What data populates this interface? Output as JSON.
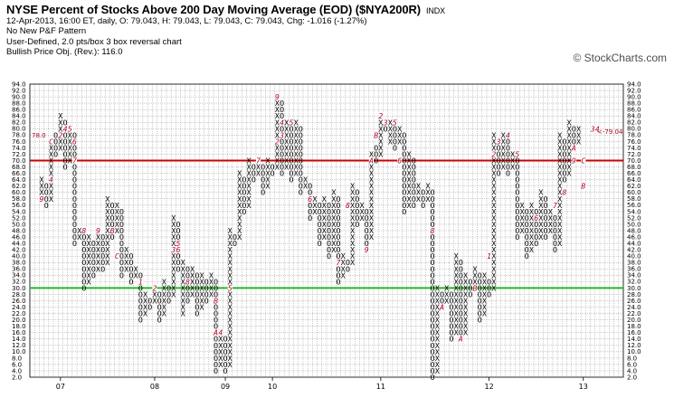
{
  "header": {
    "title": "NYSE Percent of Stocks Above 200 Day Moving Average (EOD) ($NYA200R)",
    "exchange": "INDX",
    "quote_line": "12-Apr-2013, 16:00 ET, daily, O: 79.043, H: 79.043, L: 79.043, C: 79.043, Chg: -1.016 (-1.27%)",
    "pattern_line": "No New P&F Pattern",
    "scale_line": "User-Defined, 2.0 pts/box 3 box reversal chart",
    "objective_line": "Bullish Price Obj. (Rev.): 116.0"
  },
  "watermark": "© StockCharts.com",
  "colors": {
    "x_o": "#000000",
    "month_marks": "#b0002a",
    "red_line": "#cc0000",
    "green_line": "#22bb22",
    "grid": "#999999"
  },
  "chart_data": {
    "type": "point-and-figure",
    "box_size": 2.0,
    "reversal": 3,
    "ylim": [
      2,
      94
    ],
    "yticks": [
      2,
      4,
      6,
      8,
      10,
      12,
      14,
      16,
      18,
      20,
      22,
      24,
      26,
      28,
      30,
      32,
      34,
      36,
      38,
      40,
      42,
      44,
      46,
      48,
      50,
      52,
      54,
      56,
      58,
      60,
      62,
      64,
      66,
      68,
      70,
      72,
      74,
      76,
      78,
      80,
      82,
      84,
      86,
      88,
      90,
      92,
      94
    ],
    "year_labels": [
      {
        "label": "07",
        "column": 4
      },
      {
        "label": "08",
        "column": 24
      },
      {
        "label": "09",
        "column": 39
      },
      {
        "label": "10",
        "column": 49
      },
      {
        "label": "11",
        "column": 72
      },
      {
        "label": "12",
        "column": 95
      },
      {
        "label": "13",
        "column": 115
      }
    ],
    "reference_lines": [
      {
        "name": "red",
        "value": 70,
        "color": "#cc0000"
      },
      {
        "name": "green",
        "value": 30,
        "color": "#22bb22"
      }
    ],
    "last_value_marker": {
      "text": "<-79.04",
      "value": 79.04
    },
    "left_label": {
      "text": "78.0",
      "value": 78
    },
    "columns": [
      {
        "t": "X",
        "lo": 58,
        "hi": 64
      },
      {
        "t": "O",
        "lo": 56,
        "hi": 62
      },
      {
        "t": "X",
        "lo": 58,
        "hi": 76
      },
      {
        "t": "O",
        "lo": 72,
        "hi": 78
      },
      {
        "t": "X",
        "lo": 74,
        "hi": 84
      },
      {
        "t": "O",
        "lo": 68,
        "hi": 82
      },
      {
        "t": "X",
        "lo": 70,
        "hi": 80
      },
      {
        "t": "O",
        "lo": 44,
        "hi": 78
      },
      {
        "t": "X",
        "lo": 46,
        "hi": 48
      },
      {
        "t": "O",
        "lo": 30,
        "hi": 46
      },
      {
        "t": "X",
        "lo": 32,
        "hi": 46
      },
      {
        "t": "O",
        "lo": 34,
        "hi": 44
      },
      {
        "t": "X",
        "lo": 36,
        "hi": 48
      },
      {
        "t": "O",
        "lo": 36,
        "hi": 46
      },
      {
        "t": "X",
        "lo": 38,
        "hi": 58
      },
      {
        "t": "O",
        "lo": 46,
        "hi": 56
      },
      {
        "t": "X",
        "lo": 48,
        "hi": 56
      },
      {
        "t": "O",
        "lo": 34,
        "hi": 54
      },
      {
        "t": "X",
        "lo": 36,
        "hi": 42
      },
      {
        "t": "O",
        "lo": 32,
        "hi": 40
      },
      {
        "t": "X",
        "lo": 34,
        "hi": 36
      },
      {
        "t": "O",
        "lo": 20,
        "hi": 34
      },
      {
        "t": "X",
        "lo": 22,
        "hi": 28
      },
      {
        "t": "O",
        "lo": 24,
        "hi": 26
      },
      {
        "t": "X",
        "lo": 26,
        "hi": 30
      },
      {
        "t": "O",
        "lo": 20,
        "hi": 28
      },
      {
        "t": "X",
        "lo": 22,
        "hi": 32
      },
      {
        "t": "O",
        "lo": 26,
        "hi": 30
      },
      {
        "t": "X",
        "lo": 28,
        "hi": 52
      },
      {
        "t": "O",
        "lo": 36,
        "hi": 50
      },
      {
        "t": "X",
        "lo": 22,
        "hi": 38
      },
      {
        "t": "O",
        "lo": 26,
        "hi": 36
      },
      {
        "t": "X",
        "lo": 28,
        "hi": 36
      },
      {
        "t": "O",
        "lo": 22,
        "hi": 34
      },
      {
        "t": "X",
        "lo": 24,
        "hi": 34
      },
      {
        "t": "O",
        "lo": 26,
        "hi": 32
      },
      {
        "t": "X",
        "lo": 28,
        "hi": 34
      },
      {
        "t": "O",
        "lo": 4,
        "hi": 32
      },
      {
        "t": "X",
        "lo": 6,
        "hi": 16
      },
      {
        "t": "O",
        "lo": 4,
        "hi": 14
      },
      {
        "t": "X",
        "lo": 6,
        "hi": 48
      },
      {
        "t": "O",
        "lo": 44,
        "hi": 46
      },
      {
        "t": "X",
        "lo": 46,
        "hi": 66
      },
      {
        "t": "O",
        "lo": 54,
        "hi": 64
      },
      {
        "t": "X",
        "lo": 56,
        "hi": 70
      },
      {
        "t": "O",
        "lo": 64,
        "hi": 68
      },
      {
        "t": "X",
        "lo": 66,
        "hi": 70
      },
      {
        "t": "O",
        "lo": 60,
        "hi": 68
      },
      {
        "t": "X",
        "lo": 62,
        "hi": 70
      },
      {
        "t": "O",
        "lo": 66,
        "hi": 68
      },
      {
        "t": "X",
        "lo": 68,
        "hi": 90
      },
      {
        "t": "O",
        "lo": 66,
        "hi": 88
      },
      {
        "t": "X",
        "lo": 68,
        "hi": 82
      },
      {
        "t": "O",
        "lo": 64,
        "hi": 80
      },
      {
        "t": "X",
        "lo": 66,
        "hi": 82
      },
      {
        "t": "O",
        "lo": 60,
        "hi": 80
      },
      {
        "t": "X",
        "lo": 62,
        "hi": 64
      },
      {
        "t": "O",
        "lo": 52,
        "hi": 62
      },
      {
        "t": "X",
        "lo": 54,
        "hi": 58
      },
      {
        "t": "O",
        "lo": 44,
        "hi": 56
      },
      {
        "t": "X",
        "lo": 46,
        "hi": 58
      },
      {
        "t": "O",
        "lo": 40,
        "hi": 56
      },
      {
        "t": "X",
        "lo": 42,
        "hi": 60
      },
      {
        "t": "O",
        "lo": 32,
        "hi": 58
      },
      {
        "t": "X",
        "lo": 34,
        "hi": 40
      },
      {
        "t": "O",
        "lo": 36,
        "hi": 38
      },
      {
        "t": "X",
        "lo": 38,
        "hi": 62
      },
      {
        "t": "O",
        "lo": 50,
        "hi": 60
      },
      {
        "t": "X",
        "lo": 52,
        "hi": 56
      },
      {
        "t": "O",
        "lo": 44,
        "hi": 54
      },
      {
        "t": "X",
        "lo": 46,
        "hi": 72
      },
      {
        "t": "O",
        "lo": 70,
        "hi": 74
      },
      {
        "t": "X",
        "lo": 72,
        "hi": 84
      },
      {
        "t": "O",
        "lo": 80,
        "hi": 82
      },
      {
        "t": "X",
        "lo": 76,
        "hi": 82
      },
      {
        "t": "O",
        "lo": 74,
        "hi": 80
      },
      {
        "t": "X",
        "lo": 76,
        "hi": 80
      },
      {
        "t": "O",
        "lo": 54,
        "hi": 78
      },
      {
        "t": "X",
        "lo": 56,
        "hi": 72
      },
      {
        "t": "O",
        "lo": 56,
        "hi": 70
      },
      {
        "t": "X",
        "lo": 58,
        "hi": 62
      },
      {
        "t": "O",
        "lo": 56,
        "hi": 60
      },
      {
        "t": "X",
        "lo": 58,
        "hi": 62
      },
      {
        "t": "O",
        "lo": 2,
        "hi": 60
      },
      {
        "t": "X",
        "lo": 4,
        "hi": 30
      },
      {
        "t": "O",
        "lo": 24,
        "hi": 28
      },
      {
        "t": "X",
        "lo": 26,
        "hi": 30
      },
      {
        "t": "O",
        "lo": 14,
        "hi": 28
      },
      {
        "t": "X",
        "lo": 16,
        "hi": 40
      },
      {
        "t": "O",
        "lo": 14,
        "hi": 38
      },
      {
        "t": "X",
        "lo": 16,
        "hi": 34
      },
      {
        "t": "O",
        "lo": 28,
        "hi": 32
      },
      {
        "t": "X",
        "lo": 30,
        "hi": 36
      },
      {
        "t": "O",
        "lo": 20,
        "hi": 34
      },
      {
        "t": "X",
        "lo": 22,
        "hi": 34
      },
      {
        "t": "O",
        "lo": 28,
        "hi": 32
      },
      {
        "t": "X",
        "lo": 30,
        "hi": 78
      },
      {
        "t": "O",
        "lo": 66,
        "hi": 76
      },
      {
        "t": "X",
        "lo": 68,
        "hi": 78
      },
      {
        "t": "O",
        "lo": 66,
        "hi": 76
      },
      {
        "t": "X",
        "lo": 68,
        "hi": 72
      },
      {
        "t": "O",
        "lo": 46,
        "hi": 70
      },
      {
        "t": "X",
        "lo": 48,
        "hi": 56
      },
      {
        "t": "O",
        "lo": 40,
        "hi": 54
      },
      {
        "t": "X",
        "lo": 42,
        "hi": 56
      },
      {
        "t": "O",
        "lo": 44,
        "hi": 54
      },
      {
        "t": "X",
        "lo": 46,
        "hi": 60
      },
      {
        "t": "O",
        "lo": 46,
        "hi": 58
      },
      {
        "t": "X",
        "lo": 48,
        "hi": 54
      },
      {
        "t": "O",
        "lo": 42,
        "hi": 52
      },
      {
        "t": "X",
        "lo": 44,
        "hi": 78
      },
      {
        "t": "O",
        "lo": 64,
        "hi": 76
      },
      {
        "t": "X",
        "lo": 66,
        "hi": 82
      },
      {
        "t": "O",
        "lo": 74,
        "hi": 80
      },
      {
        "t": "X",
        "lo": 76,
        "hi": 80
      }
    ],
    "month_marks": [
      {
        "col": 0,
        "value": 58,
        "label": "9"
      },
      {
        "col": 2,
        "value": 76,
        "label": "C"
      },
      {
        "col": 2,
        "value": 64,
        "label": "4"
      },
      {
        "col": 4,
        "value": 78,
        "label": "2"
      },
      {
        "col": 5,
        "value": 80,
        "label": "4"
      },
      {
        "col": 6,
        "value": 80,
        "label": "5"
      },
      {
        "col": 7,
        "value": 76,
        "label": "6"
      },
      {
        "col": 7,
        "value": 70,
        "label": "7"
      },
      {
        "col": 9,
        "value": 48,
        "label": "8"
      },
      {
        "col": 12,
        "value": 48,
        "label": "9"
      },
      {
        "col": 15,
        "value": 48,
        "label": "B"
      },
      {
        "col": 16,
        "value": 40,
        "label": "C"
      },
      {
        "col": 21,
        "value": 32,
        "label": "1"
      },
      {
        "col": 24,
        "value": 30,
        "label": "2"
      },
      {
        "col": 28,
        "value": 42,
        "label": "3"
      },
      {
        "col": 29,
        "value": 44,
        "label": "5"
      },
      {
        "col": 29,
        "value": 42,
        "label": "6"
      },
      {
        "col": 31,
        "value": 32,
        "label": "8"
      },
      {
        "col": 37,
        "value": 16,
        "label": "A"
      },
      {
        "col": 38,
        "value": 16,
        "label": "4"
      },
      {
        "col": 37,
        "value": 26,
        "label": "B"
      },
      {
        "col": 40,
        "value": 30,
        "label": "5"
      },
      {
        "col": 46,
        "value": 70,
        "label": "7"
      },
      {
        "col": 50,
        "value": 90,
        "label": "9"
      },
      {
        "col": 51,
        "value": 82,
        "label": "4"
      },
      {
        "col": 53,
        "value": 82,
        "label": "5"
      },
      {
        "col": 50,
        "value": 76,
        "label": "2"
      },
      {
        "col": 51,
        "value": 78,
        "label": "3"
      },
      {
        "col": 57,
        "value": 58,
        "label": "6"
      },
      {
        "col": 63,
        "value": 38,
        "label": "7"
      },
      {
        "col": 65,
        "value": 56,
        "label": "8"
      },
      {
        "col": 69,
        "value": 42,
        "label": "9"
      },
      {
        "col": 70,
        "value": 70,
        "label": "A"
      },
      {
        "col": 71,
        "value": 78,
        "label": "B"
      },
      {
        "col": 72,
        "value": 84,
        "label": "2"
      },
      {
        "col": 73,
        "value": 82,
        "label": "3"
      },
      {
        "col": 75,
        "value": 82,
        "label": "5"
      },
      {
        "col": 76,
        "value": 70,
        "label": "6"
      },
      {
        "col": 83,
        "value": 48,
        "label": "8"
      },
      {
        "col": 85,
        "value": 24,
        "label": "A"
      },
      {
        "col": 89,
        "value": 14,
        "label": "A"
      },
      {
        "col": 92,
        "value": 30,
        "label": "B"
      },
      {
        "col": 95,
        "value": 40,
        "label": "1"
      },
      {
        "col": 96,
        "value": 72,
        "label": "2"
      },
      {
        "col": 97,
        "value": 76,
        "label": "3"
      },
      {
        "col": 99,
        "value": 78,
        "label": "4"
      },
      {
        "col": 101,
        "value": 72,
        "label": "5"
      },
      {
        "col": 105,
        "value": 52,
        "label": "6"
      },
      {
        "col": 109,
        "value": 56,
        "label": "7"
      },
      {
        "col": 111,
        "value": 60,
        "label": "8"
      },
      {
        "col": 113,
        "value": 70,
        "label": "9"
      },
      {
        "col": 113,
        "value": 74,
        "label": "A"
      },
      {
        "col": 115,
        "value": 62,
        "label": "B"
      },
      {
        "col": 115,
        "value": 70,
        "label": "C"
      },
      {
        "col": 117,
        "value": 80,
        "label": "3"
      },
      {
        "col": 118,
        "value": 80,
        "label": "4"
      }
    ]
  }
}
